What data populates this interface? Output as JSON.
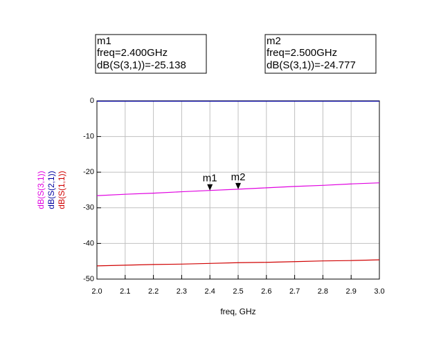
{
  "chart_data": {
    "type": "line",
    "x_label": "freq, GHz",
    "x": [
      2.0,
      2.1,
      2.2,
      2.3,
      2.4,
      2.5,
      2.6,
      2.7,
      2.8,
      2.9,
      3.0
    ],
    "series": [
      {
        "name": "dB(S(3,1))",
        "color": "#e000e0",
        "values": [
          -26.6,
          -26.2,
          -25.9,
          -25.5,
          -25.138,
          -24.777,
          -24.4,
          -24.0,
          -23.7,
          -23.3,
          -23.0
        ]
      },
      {
        "name": "dB(S(2,1))",
        "color": "#0000a0",
        "values": [
          -0.1,
          -0.1,
          -0.1,
          -0.1,
          -0.1,
          -0.1,
          -0.1,
          -0.1,
          -0.1,
          -0.1,
          -0.1
        ]
      },
      {
        "name": "dB(S(1,1))",
        "color": "#d00000",
        "values": [
          -46.3,
          -46.1,
          -45.9,
          -45.8,
          -45.6,
          -45.4,
          -45.3,
          -45.1,
          -44.9,
          -44.8,
          -44.6
        ]
      }
    ],
    "xlim": [
      2.0,
      3.0
    ],
    "xticks": [
      {
        "value": 2.0,
        "label": "2.0"
      },
      2.1,
      2.2,
      2.3,
      2.4,
      2.5,
      2.6,
      2.7,
      2.8,
      2.9,
      {
        "value": 3.0,
        "label": "3.0"
      }
    ],
    "ylim": [
      -50,
      0
    ],
    "yticks": [
      -50,
      -40,
      -30,
      -20,
      -10,
      0
    ],
    "grid": true,
    "markers": [
      {
        "name": "m1",
        "freq_text": "freq=2.400GHz",
        "value_text": "dB(S(3,1))=-25.138",
        "x": 2.4,
        "y": -25.138
      },
      {
        "name": "m2",
        "freq_text": "freq=2.500GHz",
        "value_text": "dB(S(3,1))=-24.777",
        "x": 2.5,
        "y": -24.777
      }
    ]
  }
}
